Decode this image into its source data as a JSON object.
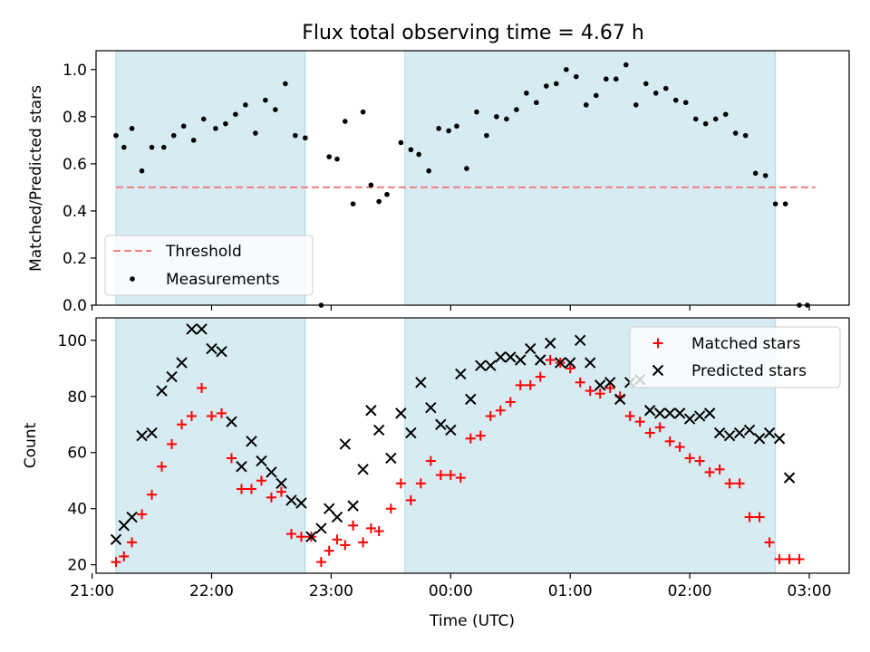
{
  "figure": {
    "title": "Flux total observing time = 4.67 h"
  },
  "colors": {
    "shade": "#add8e6",
    "threshold": "#f08080",
    "matched": "#ff0000",
    "predicted": "#000000"
  },
  "chart_data": [
    {
      "type": "scatter",
      "panel": "top",
      "ylabel": "Matched/Predicted stars",
      "xlabel": "",
      "xlim": [
        "21:02",
        "03:20"
      ],
      "ylim": [
        0,
        1.08
      ],
      "yticks": [
        "0.0",
        "0.2",
        "0.4",
        "0.6",
        "0.8",
        "1.0"
      ],
      "legend": {
        "placement": "lower-left",
        "entries": [
          "Threshold",
          "Measurements"
        ]
      },
      "shaded_intervals": [
        [
          "21:12",
          "22:47"
        ],
        [
          "23:37",
          "02:43"
        ]
      ],
      "threshold": {
        "name": "Threshold",
        "y": 0.5,
        "x_range": [
          "21:12",
          "03:03"
        ],
        "style": "dashed"
      },
      "series": [
        {
          "name": "Measurements",
          "points": [
            [
              "21:12",
              0.72
            ],
            [
              "21:16",
              0.67
            ],
            [
              "21:20",
              0.75
            ],
            [
              "21:25",
              0.57
            ],
            [
              "21:30",
              0.67
            ],
            [
              "21:36",
              0.67
            ],
            [
              "21:41",
              0.72
            ],
            [
              "21:46",
              0.76
            ],
            [
              "21:51",
              0.7
            ],
            [
              "21:56",
              0.79
            ],
            [
              "22:02",
              0.75
            ],
            [
              "22:07",
              0.77
            ],
            [
              "22:12",
              0.81
            ],
            [
              "22:17",
              0.85
            ],
            [
              "22:22",
              0.73
            ],
            [
              "22:27",
              0.87
            ],
            [
              "22:32",
              0.83
            ],
            [
              "22:37",
              0.94
            ],
            [
              "22:42",
              0.72
            ],
            [
              "22:47",
              0.71
            ],
            [
              "22:55",
              0.0
            ],
            [
              "22:59",
              0.63
            ],
            [
              "23:03",
              0.62
            ],
            [
              "23:07",
              0.78
            ],
            [
              "23:11",
              0.43
            ],
            [
              "23:16",
              0.82
            ],
            [
              "23:20",
              0.51
            ],
            [
              "23:24",
              0.44
            ],
            [
              "23:28",
              0.47
            ],
            [
              "23:35",
              0.69
            ],
            [
              "23:40",
              0.66
            ],
            [
              "23:44",
              0.64
            ],
            [
              "23:49",
              0.57
            ],
            [
              "23:54",
              0.75
            ],
            [
              "23:59",
              0.74
            ],
            [
              "00:03",
              0.76
            ],
            [
              "00:08",
              0.58
            ],
            [
              "00:13",
              0.82
            ],
            [
              "00:18",
              0.72
            ],
            [
              "00:23",
              0.8
            ],
            [
              "00:28",
              0.79
            ],
            [
              "00:33",
              0.83
            ],
            [
              "00:38",
              0.9
            ],
            [
              "00:43",
              0.86
            ],
            [
              "00:48",
              0.93
            ],
            [
              "00:53",
              0.94
            ],
            [
              "00:58",
              1.0
            ],
            [
              "01:03",
              0.97
            ],
            [
              "01:08",
              0.85
            ],
            [
              "01:13",
              0.89
            ],
            [
              "01:18",
              0.96
            ],
            [
              "01:23",
              0.96
            ],
            [
              "01:28",
              1.02
            ],
            [
              "01:33",
              0.85
            ],
            [
              "01:38",
              0.94
            ],
            [
              "01:43",
              0.9
            ],
            [
              "01:48",
              0.92
            ],
            [
              "01:53",
              0.87
            ],
            [
              "01:58",
              0.86
            ],
            [
              "02:03",
              0.79
            ],
            [
              "02:08",
              0.77
            ],
            [
              "02:13",
              0.79
            ],
            [
              "02:18",
              0.81
            ],
            [
              "02:23",
              0.73
            ],
            [
              "02:28",
              0.72
            ],
            [
              "02:33",
              0.56
            ],
            [
              "02:38",
              0.55
            ],
            [
              "02:43",
              0.43
            ],
            [
              "02:48",
              0.43
            ],
            [
              "02:55",
              0.0
            ],
            [
              "02:59",
              0.0
            ]
          ]
        }
      ]
    },
    {
      "type": "scatter",
      "panel": "bottom",
      "xlabel": "Time (UTC)",
      "ylabel": "Count",
      "xlim": [
        "21:02",
        "03:20"
      ],
      "ylim": [
        17,
        108
      ],
      "xticks": [
        "21:00",
        "22:00",
        "23:00",
        "00:00",
        "01:00",
        "02:00",
        "03:00"
      ],
      "yticks": [
        "20",
        "40",
        "60",
        "80",
        "100"
      ],
      "legend": {
        "placement": "upper-right",
        "entries": [
          "Matched stars",
          "Predicted stars"
        ]
      },
      "shaded_intervals": [
        [
          "21:12",
          "22:47"
        ],
        [
          "23:37",
          "02:43"
        ]
      ],
      "series": [
        {
          "name": "Matched stars",
          "marker": "plus",
          "points": [
            [
              "21:12",
              21
            ],
            [
              "21:16",
              23
            ],
            [
              "21:20",
              28
            ],
            [
              "21:25",
              38
            ],
            [
              "21:30",
              45
            ],
            [
              "21:35",
              55
            ],
            [
              "21:40",
              63
            ],
            [
              "21:45",
              70
            ],
            [
              "21:50",
              73
            ],
            [
              "21:55",
              83
            ],
            [
              "22:00",
              73
            ],
            [
              "22:05",
              74
            ],
            [
              "22:10",
              58
            ],
            [
              "22:15",
              47
            ],
            [
              "22:20",
              47
            ],
            [
              "22:25",
              50
            ],
            [
              "22:30",
              44
            ],
            [
              "22:35",
              46
            ],
            [
              "22:40",
              31
            ],
            [
              "22:45",
              30
            ],
            [
              "22:50",
              30
            ],
            [
              "22:55",
              21
            ],
            [
              "22:59",
              25
            ],
            [
              "23:03",
              29
            ],
            [
              "23:07",
              27
            ],
            [
              "23:11",
              34
            ],
            [
              "23:16",
              28
            ],
            [
              "23:20",
              33
            ],
            [
              "23:24",
              32
            ],
            [
              "23:30",
              40
            ],
            [
              "23:35",
              49
            ],
            [
              "23:40",
              43
            ],
            [
              "23:45",
              49
            ],
            [
              "23:50",
              57
            ],
            [
              "23:55",
              52
            ],
            [
              "00:00",
              52
            ],
            [
              "00:05",
              51
            ],
            [
              "00:10",
              65
            ],
            [
              "00:15",
              66
            ],
            [
              "00:20",
              73
            ],
            [
              "00:25",
              75
            ],
            [
              "00:30",
              78
            ],
            [
              "00:35",
              84
            ],
            [
              "00:40",
              84
            ],
            [
              "00:45",
              87
            ],
            [
              "00:50",
              93
            ],
            [
              "00:55",
              92
            ],
            [
              "01:00",
              90
            ],
            [
              "01:05",
              85
            ],
            [
              "01:10",
              82
            ],
            [
              "01:15",
              81
            ],
            [
              "01:20",
              83
            ],
            [
              "01:25",
              80
            ],
            [
              "01:30",
              73
            ],
            [
              "01:35",
              71
            ],
            [
              "01:40",
              67
            ],
            [
              "01:45",
              69
            ],
            [
              "01:50",
              64
            ],
            [
              "01:55",
              62
            ],
            [
              "02:00",
              58
            ],
            [
              "02:05",
              57
            ],
            [
              "02:10",
              53
            ],
            [
              "02:15",
              54
            ],
            [
              "02:20",
              49
            ],
            [
              "02:25",
              49
            ],
            [
              "02:30",
              37
            ],
            [
              "02:35",
              37
            ],
            [
              "02:40",
              28
            ],
            [
              "02:45",
              22
            ],
            [
              "02:50",
              22
            ],
            [
              "02:55",
              22
            ]
          ]
        },
        {
          "name": "Predicted stars",
          "marker": "x",
          "points": [
            [
              "21:12",
              29
            ],
            [
              "21:16",
              34
            ],
            [
              "21:20",
              37
            ],
            [
              "21:25",
              66
            ],
            [
              "21:30",
              67
            ],
            [
              "21:35",
              82
            ],
            [
              "21:40",
              87
            ],
            [
              "21:45",
              92
            ],
            [
              "21:50",
              104
            ],
            [
              "21:55",
              104
            ],
            [
              "22:00",
              97
            ],
            [
              "22:05",
              96
            ],
            [
              "22:10",
              71
            ],
            [
              "22:15",
              55
            ],
            [
              "22:20",
              64
            ],
            [
              "22:25",
              57
            ],
            [
              "22:30",
              53
            ],
            [
              "22:35",
              49
            ],
            [
              "22:40",
              43
            ],
            [
              "22:45",
              42
            ],
            [
              "22:50",
              30
            ],
            [
              "22:55",
              33
            ],
            [
              "22:59",
              40
            ],
            [
              "23:03",
              37
            ],
            [
              "23:07",
              63
            ],
            [
              "23:11",
              41
            ],
            [
              "23:16",
              54
            ],
            [
              "23:20",
              75
            ],
            [
              "23:24",
              68
            ],
            [
              "23:30",
              58
            ],
            [
              "23:35",
              74
            ],
            [
              "23:40",
              67
            ],
            [
              "23:45",
              85
            ],
            [
              "23:50",
              76
            ],
            [
              "23:55",
              70
            ],
            [
              "00:00",
              68
            ],
            [
              "00:05",
              88
            ],
            [
              "00:10",
              79
            ],
            [
              "00:15",
              91
            ],
            [
              "00:20",
              91
            ],
            [
              "00:25",
              94
            ],
            [
              "00:30",
              94
            ],
            [
              "00:35",
              93
            ],
            [
              "00:40",
              97
            ],
            [
              "00:45",
              93
            ],
            [
              "00:50",
              99
            ],
            [
              "00:55",
              92
            ],
            [
              "01:00",
              92
            ],
            [
              "01:05",
              100
            ],
            [
              "01:10",
              92
            ],
            [
              "01:15",
              84
            ],
            [
              "01:20",
              85
            ],
            [
              "01:25",
              79
            ],
            [
              "01:30",
              85
            ],
            [
              "01:35",
              86
            ],
            [
              "01:40",
              75
            ],
            [
              "01:45",
              74
            ],
            [
              "01:50",
              74
            ],
            [
              "01:55",
              74
            ],
            [
              "02:00",
              72
            ],
            [
              "02:05",
              73
            ],
            [
              "02:10",
              74
            ],
            [
              "02:15",
              67
            ],
            [
              "02:20",
              66
            ],
            [
              "02:25",
              67
            ],
            [
              "02:30",
              68
            ],
            [
              "02:35",
              65
            ],
            [
              "02:40",
              67
            ],
            [
              "02:45",
              65
            ],
            [
              "02:50",
              51
            ]
          ]
        }
      ]
    }
  ]
}
